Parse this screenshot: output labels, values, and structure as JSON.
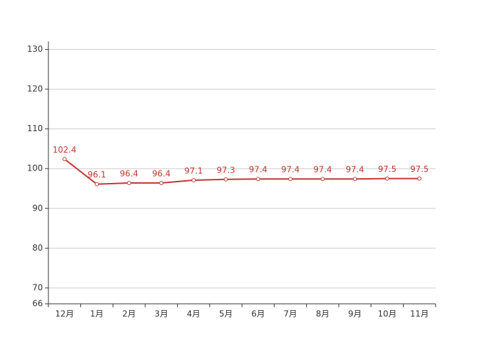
{
  "chart_data": {
    "type": "line",
    "categories": [
      "12月",
      "1月",
      "2月",
      "3月",
      "4月",
      "5月",
      "6月",
      "7月",
      "8月",
      "9月",
      "10月",
      "11月"
    ],
    "values": [
      102.4,
      96.1,
      96.4,
      96.4,
      97.1,
      97.3,
      97.4,
      97.4,
      97.4,
      97.4,
      97.5,
      97.5
    ],
    "color": "#c23531",
    "ylim": [
      66,
      132
    ],
    "yticks": [
      66,
      70,
      80,
      90,
      100,
      110,
      120,
      130
    ],
    "grid": true
  }
}
